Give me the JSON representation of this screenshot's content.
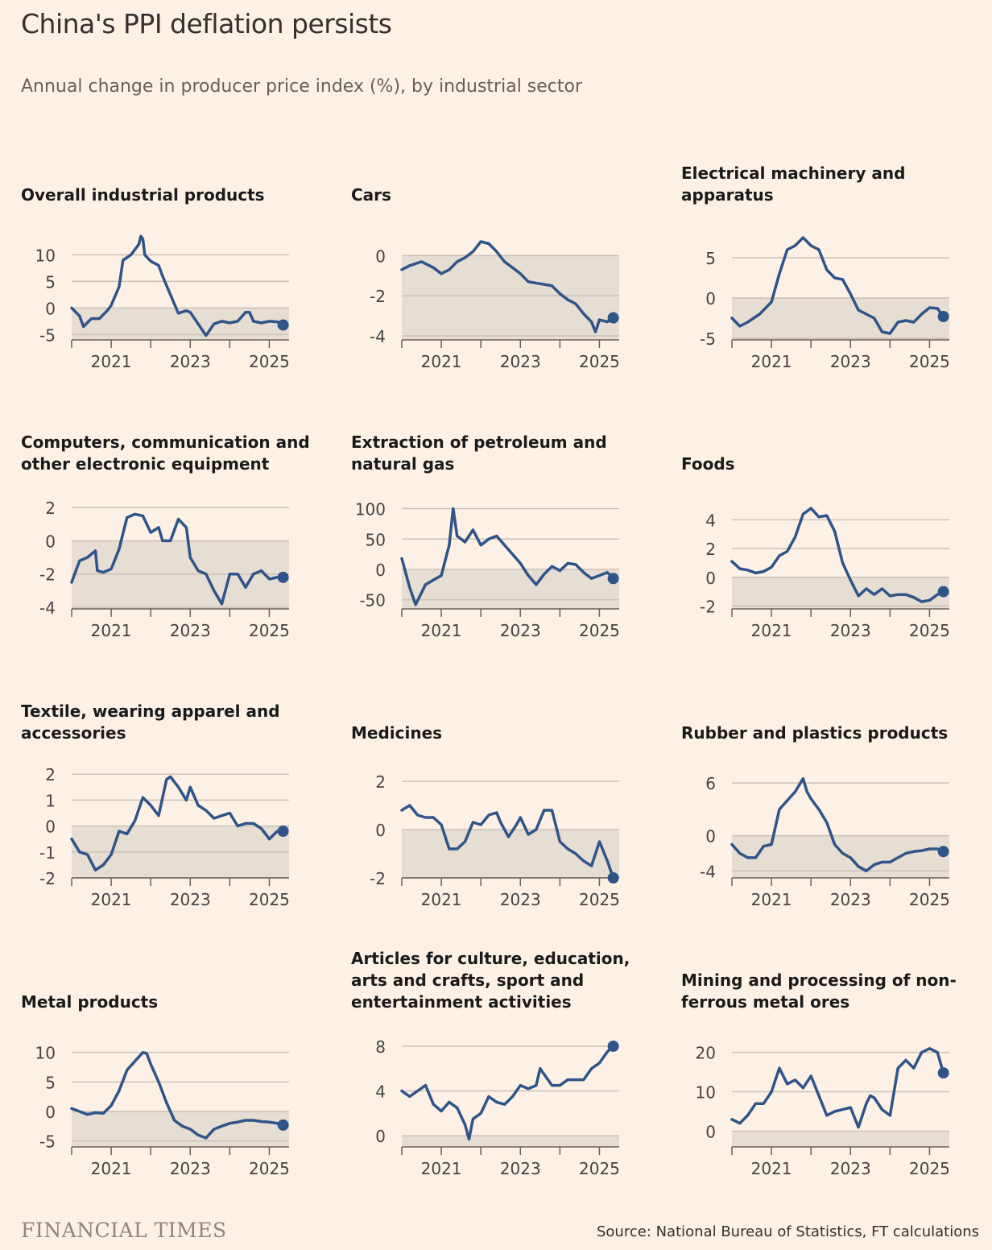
{
  "title": "China's PPI deflation persists",
  "subtitle": "Annual change in producer price index (%), by industrial sector",
  "source": "Source: National Bureau of Statistics, FT calculations",
  "brand": "FINANCIAL TIMES",
  "colors": {
    "background": "#fdf1e5",
    "line": "#2f5489",
    "negative_band": "#e6ddd3",
    "grid": "#ccc1b7",
    "axis": "#66605c"
  },
  "x_ticks": [
    "2021",
    "2023",
    "2025"
  ],
  "chart_data": [
    {
      "type": "line",
      "title": "Overall industrial products",
      "ylim": [
        -6,
        14
      ],
      "yticks": [
        10,
        5,
        0,
        -5
      ],
      "xlim": [
        2020,
        2025.5
      ],
      "x": [
        2020.0,
        2020.2,
        2020.3,
        2020.5,
        2020.7,
        2020.9,
        2021.0,
        2021.2,
        2021.3,
        2021.5,
        2021.7,
        2021.75,
        2021.8,
        2021.85,
        2022.0,
        2022.2,
        2022.3,
        2022.5,
        2022.7,
        2022.9,
        2023.0,
        2023.2,
        2023.4,
        2023.6,
        2023.8,
        2024.0,
        2024.2,
        2024.4,
        2024.5,
        2024.6,
        2024.8,
        2025.0,
        2025.2,
        2025.35
      ],
      "y": [
        0,
        -1.5,
        -3.5,
        -2,
        -2,
        -0.5,
        0.5,
        4,
        9,
        10,
        12,
        13.5,
        13,
        10,
        8.8,
        8,
        6,
        2.5,
        -1,
        -0.5,
        -0.8,
        -3,
        -5.2,
        -3,
        -2.5,
        -2.8,
        -2.5,
        -0.8,
        -0.8,
        -2.5,
        -2.8,
        -2.5,
        -2.6,
        -3.2
      ]
    },
    {
      "type": "line",
      "title": "Cars",
      "ylim": [
        -4.2,
        1.1
      ],
      "yticks": [
        0,
        -2,
        -4
      ],
      "xlim": [
        2020,
        2025.5
      ],
      "x": [
        2020.0,
        2020.2,
        2020.5,
        2020.8,
        2021.0,
        2021.2,
        2021.4,
        2021.6,
        2021.8,
        2022.0,
        2022.2,
        2022.4,
        2022.6,
        2022.8,
        2023.0,
        2023.2,
        2023.5,
        2023.8,
        2024.0,
        2024.2,
        2024.4,
        2024.6,
        2024.8,
        2024.9,
        2025.0,
        2025.2,
        2025.35
      ],
      "y": [
        -0.7,
        -0.5,
        -0.3,
        -0.6,
        -0.9,
        -0.7,
        -0.3,
        -0.1,
        0.2,
        0.7,
        0.6,
        0.2,
        -0.3,
        -0.6,
        -0.9,
        -1.3,
        -1.4,
        -1.5,
        -1.9,
        -2.2,
        -2.4,
        -2.9,
        -3.3,
        -3.8,
        -3.2,
        -3.3,
        -3.1
      ]
    },
    {
      "type": "line",
      "title": "Electrical machinery and apparatus",
      "ylim": [
        -5.2,
        8
      ],
      "yticks": [
        5,
        0,
        -5
      ],
      "xlim": [
        2020,
        2025.5
      ],
      "x": [
        2020.0,
        2020.2,
        2020.4,
        2020.7,
        2021.0,
        2021.2,
        2021.4,
        2021.6,
        2021.8,
        2021.9,
        2022.0,
        2022.2,
        2022.4,
        2022.6,
        2022.8,
        2023.0,
        2023.2,
        2023.4,
        2023.6,
        2023.8,
        2024.0,
        2024.2,
        2024.4,
        2024.6,
        2024.8,
        2025.0,
        2025.2,
        2025.35
      ],
      "y": [
        -2.5,
        -3.5,
        -3,
        -2,
        -0.5,
        3,
        6,
        6.5,
        7.5,
        7,
        6.5,
        6,
        3.5,
        2.5,
        2.3,
        0.5,
        -1.5,
        -2,
        -2.5,
        -4.2,
        -4.4,
        -3,
        -2.8,
        -3,
        -2,
        -1.2,
        -1.3,
        -2.3
      ]
    },
    {
      "type": "line",
      "title": "Computers, communication and other electronic equipment",
      "ylim": [
        -4.1,
        2.3
      ],
      "yticks": [
        2,
        0,
        -2,
        -4
      ],
      "xlim": [
        2020,
        2025.5
      ],
      "x": [
        2020.0,
        2020.2,
        2020.4,
        2020.6,
        2020.65,
        2020.8,
        2021.0,
        2021.2,
        2021.4,
        2021.6,
        2021.8,
        2022.0,
        2022.2,
        2022.3,
        2022.5,
        2022.7,
        2022.9,
        2023.0,
        2023.2,
        2023.4,
        2023.6,
        2023.8,
        2024.0,
        2024.2,
        2024.4,
        2024.6,
        2024.8,
        2025.0,
        2025.2,
        2025.35
      ],
      "y": [
        -2.5,
        -1.2,
        -1,
        -0.6,
        -1.8,
        -1.9,
        -1.7,
        -0.5,
        1.4,
        1.6,
        1.5,
        0.5,
        0.8,
        0,
        0,
        1.3,
        0.8,
        -1,
        -1.8,
        -2,
        -3,
        -3.8,
        -2,
        -2,
        -2.8,
        -2,
        -1.8,
        -2.3,
        -2.2,
        -2.2
      ]
    },
    {
      "type": "line",
      "title": "Extraction of petroleum and natural gas",
      "ylim": [
        -65,
        110
      ],
      "yticks": [
        100,
        50,
        0,
        -50
      ],
      "xlim": [
        2020,
        2025.5
      ],
      "x": [
        2020.0,
        2020.2,
        2020.35,
        2020.6,
        2021.0,
        2021.2,
        2021.3,
        2021.4,
        2021.6,
        2021.8,
        2022.0,
        2022.2,
        2022.4,
        2022.6,
        2022.8,
        2023.0,
        2023.2,
        2023.4,
        2023.6,
        2023.8,
        2024.0,
        2024.2,
        2024.4,
        2024.6,
        2024.8,
        2025.0,
        2025.2,
        2025.35
      ],
      "y": [
        18,
        -30,
        -58,
        -25,
        -10,
        40,
        100,
        55,
        45,
        65,
        40,
        50,
        55,
        40,
        25,
        10,
        -10,
        -25,
        -8,
        5,
        -2,
        10,
        8,
        -5,
        -15,
        -10,
        -5,
        -15
      ]
    },
    {
      "type": "line",
      "title": "Foods",
      "ylim": [
        -2.2,
        5.2
      ],
      "yticks": [
        4,
        2,
        0,
        -2
      ],
      "xlim": [
        2020,
        2025.5
      ],
      "x": [
        2020.0,
        2020.2,
        2020.4,
        2020.6,
        2020.8,
        2021.0,
        2021.2,
        2021.4,
        2021.6,
        2021.8,
        2022.0,
        2022.2,
        2022.4,
        2022.6,
        2022.8,
        2023.0,
        2023.2,
        2023.4,
        2023.6,
        2023.8,
        2024.0,
        2024.2,
        2024.4,
        2024.6,
        2024.8,
        2025.0,
        2025.2,
        2025.35
      ],
      "y": [
        1.1,
        0.6,
        0.5,
        0.3,
        0.4,
        0.7,
        1.5,
        1.8,
        2.8,
        4.4,
        4.8,
        4.2,
        4.3,
        3.2,
        1,
        -0.2,
        -1.3,
        -0.8,
        -1.2,
        -0.8,
        -1.3,
        -1.2,
        -1.2,
        -1.4,
        -1.7,
        -1.6,
        -1.2,
        -1
      ]
    },
    {
      "type": "line",
      "title": "Textile, wearing apparel and accessories",
      "ylim": [
        -2,
        2.1
      ],
      "yticks": [
        2,
        1,
        0,
        -1,
        -2
      ],
      "xlim": [
        2020,
        2025.5
      ],
      "x": [
        2020.0,
        2020.2,
        2020.4,
        2020.6,
        2020.8,
        2021.0,
        2021.2,
        2021.4,
        2021.6,
        2021.8,
        2022.0,
        2022.2,
        2022.4,
        2022.5,
        2022.7,
        2022.9,
        2023.0,
        2023.2,
        2023.4,
        2023.6,
        2023.8,
        2024.0,
        2024.2,
        2024.4,
        2024.6,
        2024.8,
        2025.0,
        2025.2,
        2025.35
      ],
      "y": [
        -0.5,
        -1,
        -1.1,
        -1.7,
        -1.5,
        -1.1,
        -0.2,
        -0.3,
        0.2,
        1.1,
        0.8,
        0.4,
        1.8,
        1.9,
        1.5,
        1,
        1.5,
        0.8,
        0.6,
        0.3,
        0.4,
        0.5,
        0,
        0.1,
        0.1,
        -0.1,
        -0.5,
        -0.2,
        -0.2
      ]
    },
    {
      "type": "line",
      "title": "Medicines",
      "ylim": [
        -2,
        2.4
      ],
      "yticks": [
        2,
        0,
        -2
      ],
      "xlim": [
        2020,
        2025.5
      ],
      "x": [
        2020.0,
        2020.2,
        2020.4,
        2020.6,
        2020.8,
        2021.0,
        2021.2,
        2021.4,
        2021.6,
        2021.8,
        2022.0,
        2022.2,
        2022.4,
        2022.5,
        2022.7,
        2022.9,
        2023.0,
        2023.2,
        2023.4,
        2023.6,
        2023.8,
        2024.0,
        2024.2,
        2024.4,
        2024.6,
        2024.8,
        2025.0,
        2025.2,
        2025.35
      ],
      "y": [
        0.8,
        1,
        0.6,
        0.5,
        0.5,
        0.2,
        -0.8,
        -0.8,
        -0.5,
        0.3,
        0.2,
        0.6,
        0.7,
        0.3,
        -0.3,
        0.2,
        0.5,
        -0.2,
        0,
        0.8,
        0.8,
        -0.5,
        -0.8,
        -1,
        -1.3,
        -1.5,
        -0.5,
        -1.3,
        -2
      ]
    },
    {
      "type": "line",
      "title": "Rubber and plastics products",
      "ylim": [
        -4.8,
        7.3
      ],
      "yticks": [
        6,
        0,
        -4
      ],
      "xlim": [
        2020,
        2025.5
      ],
      "x": [
        2020.0,
        2020.2,
        2020.4,
        2020.6,
        2020.8,
        2021.0,
        2021.2,
        2021.4,
        2021.6,
        2021.8,
        2021.9,
        2022.0,
        2022.2,
        2022.4,
        2022.6,
        2022.8,
        2023.0,
        2023.2,
        2023.4,
        2023.6,
        2023.8,
        2024.0,
        2024.2,
        2024.4,
        2024.6,
        2024.8,
        2025.0,
        2025.2,
        2025.35
      ],
      "y": [
        -1,
        -2,
        -2.5,
        -2.5,
        -1.2,
        -1,
        3,
        4,
        5,
        6.5,
        5,
        4.2,
        3,
        1.5,
        -1,
        -2,
        -2.5,
        -3.5,
        -4,
        -3.3,
        -3,
        -3,
        -2.5,
        -2,
        -1.8,
        -1.7,
        -1.5,
        -1.5,
        -1.8
      ]
    },
    {
      "type": "line",
      "title": "Metal products",
      "ylim": [
        -6,
        12
      ],
      "yticks": [
        10,
        5,
        0,
        -5
      ],
      "xlim": [
        2020,
        2025.5
      ],
      "x": [
        2020.0,
        2020.2,
        2020.4,
        2020.6,
        2020.8,
        2021.0,
        2021.2,
        2021.4,
        2021.6,
        2021.8,
        2021.9,
        2022.0,
        2022.2,
        2022.4,
        2022.6,
        2022.8,
        2023.0,
        2023.2,
        2023.4,
        2023.6,
        2023.8,
        2024.0,
        2024.2,
        2024.4,
        2024.6,
        2024.8,
        2025.0,
        2025.2,
        2025.35
      ],
      "y": [
        0.5,
        0,
        -0.5,
        -0.2,
        -0.3,
        1,
        3.5,
        7,
        8.5,
        10,
        9.8,
        8,
        5,
        1.5,
        -1.5,
        -2.5,
        -3,
        -4,
        -4.5,
        -3,
        -2.5,
        -2,
        -1.8,
        -1.5,
        -1.5,
        -1.7,
        -1.8,
        -2,
        -2.3
      ]
    },
    {
      "type": "line",
      "title": "Articles for culture, education, arts and crafts, sport and entertainment activities",
      "ylim": [
        -1,
        8.5
      ],
      "yticks": [
        8,
        4,
        0
      ],
      "xlim": [
        2020,
        2025.5
      ],
      "x": [
        2020.0,
        2020.2,
        2020.4,
        2020.6,
        2020.8,
        2021.0,
        2021.2,
        2021.4,
        2021.6,
        2021.7,
        2021.8,
        2022.0,
        2022.2,
        2022.4,
        2022.6,
        2022.8,
        2023.0,
        2023.2,
        2023.4,
        2023.5,
        2023.6,
        2023.8,
        2024.0,
        2024.2,
        2024.4,
        2024.6,
        2024.8,
        2025.0,
        2025.2,
        2025.35
      ],
      "y": [
        4,
        3.5,
        4,
        4.5,
        2.8,
        2.2,
        3,
        2.5,
        1,
        -0.3,
        1.5,
        2,
        3.5,
        3,
        2.8,
        3.5,
        4.5,
        4.2,
        4.5,
        6,
        5.5,
        4.5,
        4.5,
        5,
        5,
        5,
        6,
        6.5,
        7.5,
        8
      ]
    },
    {
      "type": "line",
      "title": "Mining and processing of non-ferrous metal ores",
      "ylim": [
        -4,
        23
      ],
      "yticks": [
        20,
        10,
        0
      ],
      "xlim": [
        2020,
        2025.5
      ],
      "x": [
        2020.0,
        2020.2,
        2020.4,
        2020.6,
        2020.8,
        2021.0,
        2021.2,
        2021.4,
        2021.6,
        2021.8,
        2022.0,
        2022.2,
        2022.4,
        2022.6,
        2022.8,
        2023.0,
        2023.2,
        2023.4,
        2023.5,
        2023.6,
        2023.8,
        2024.0,
        2024.2,
        2024.4,
        2024.6,
        2024.8,
        2025.0,
        2025.2,
        2025.35
      ],
      "y": [
        3,
        2,
        4,
        7,
        7,
        10,
        16,
        12,
        13,
        11,
        14,
        9,
        4,
        5,
        5.5,
        6,
        1,
        7,
        9,
        8.5,
        5.5,
        4,
        16,
        18,
        16,
        20,
        21,
        20,
        14.8
      ]
    }
  ]
}
